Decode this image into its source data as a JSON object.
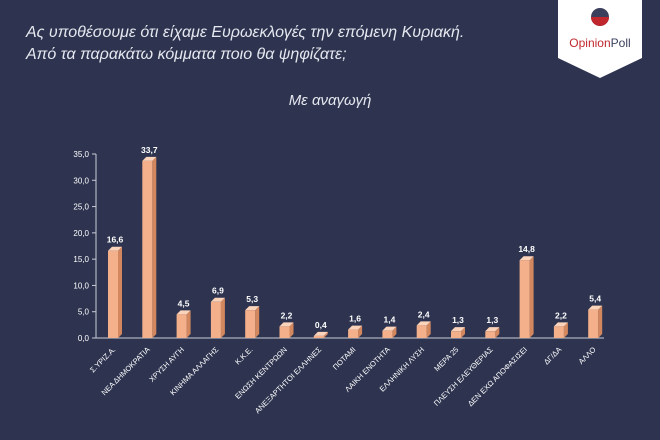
{
  "header": {
    "question_line1": "Ας υποθέσουμε ότι είχαμε Ευρωεκλογές την επόμενη Κυριακή.",
    "question_line2": "Από τα παρακάτω κόμματα ποιο θα ψηφίζατε;",
    "subtitle": "Με αναγωγή"
  },
  "logo": {
    "text_opinion": "Opinion",
    "text_poll": "Poll",
    "brand_red": "#c0272d"
  },
  "colors": {
    "background": "#2e3450",
    "bar_front": "#f4b08a",
    "bar_side": "#d2875e",
    "bar_top": "#fbd3bb",
    "text": "#ffffff"
  },
  "chart_data": {
    "type": "bar",
    "categories": [
      "Σ.ΥΡΙΖ.Α.",
      "ΝΕΑ ΔΗΜΟΚΡΑΤΙΑ",
      "ΧΡΥΣΗ ΑΥΓΗ",
      "ΚΙΝΗΜΑ ΑΛΛΑΓΗΣ",
      "Κ.Κ.Ε.",
      "ΕΝΩΣΗ ΚΕΝΤΡΩΩΝ",
      "ΑΝΕΞΑΡΤΗΤΟΙ ΕΛΛΗΝΕΣ",
      "ΠΟΤΑΜΙ",
      "ΛΑΙΚΗ ΕΝΟΤΗΤΑ",
      "ΕΛΛΗΝΙΚΗ ΛΥΣΗ",
      "ΜΕΡΑ 25",
      "ΠΛΕΥΣΗ ΕΛΕΥΘΕΡΙΑΣ",
      "ΔΕΝ ΕΧΩ ΑΠΟΦΑΣΙΣΕΙ",
      "ΔΓ/ΔΑ",
      "ΑΛΛΟ"
    ],
    "values": [
      16.6,
      33.7,
      4.5,
      6.9,
      5.3,
      2.2,
      0.4,
      1.6,
      1.4,
      2.4,
      1.3,
      1.3,
      14.8,
      2.2,
      5.4
    ],
    "value_labels": [
      "16,6",
      "33,7",
      "4,5",
      "6,9",
      "5,3",
      "2,2",
      "0,4",
      "1,6",
      "1,4",
      "2,4",
      "1,3",
      "1,3",
      "14,8",
      "2,2",
      "5,4"
    ],
    "yticks": [
      0,
      5,
      10,
      15,
      20,
      25,
      30,
      35
    ],
    "ytick_labels": [
      "0,0",
      "5,0",
      "10,0",
      "15,0",
      "20,0",
      "25,0",
      "30,0",
      "35,0"
    ],
    "ylim": [
      0,
      35
    ],
    "title": "Με αναγωγή",
    "xlabel": "",
    "ylabel": "",
    "grid": false,
    "legend": "none"
  }
}
